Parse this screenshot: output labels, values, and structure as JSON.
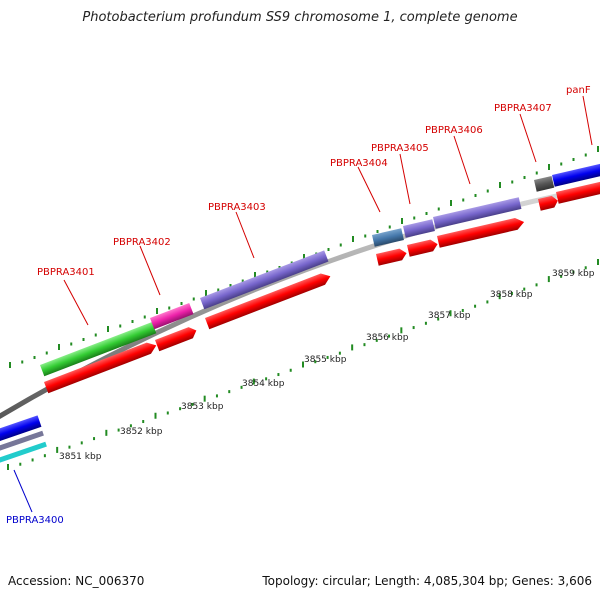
{
  "title": "Photobacterium profundum SS9 chromosome 1, complete genome",
  "footer": {
    "accession": "Accession: NC_006370",
    "summary": "Topology: circular; Length: 4,085,304 bp; Genes: 3,606"
  },
  "gene_labels": {
    "PBPRA3400": "PBPRA3400",
    "PBPRA3401": "PBPRA3401",
    "PBPRA3402": "PBPRA3402",
    "PBPRA3403": "PBPRA3403",
    "PBPRA3404": "PBPRA3404",
    "PBPRA3405": "PBPRA3405",
    "PBPRA3406": "PBPRA3406",
    "PBPRA3407": "PBPRA3407",
    "panF": "panF"
  },
  "kbp_labels": {
    "k3851": "3851 kbp",
    "k3852": "3852 kbp",
    "k3853": "3853 kbp",
    "k3854": "3854 kbp",
    "k3855": "3855 kbp",
    "k3856": "3856 kbp",
    "k3857": "3857 kbp",
    "k3858": "3858 kbp",
    "k3859": "3859 kbp"
  },
  "colors": {
    "cds": "#ff0000",
    "backbone": "#888888",
    "tick": "#228b22",
    "green_gene": "#33cc33",
    "pink_gene": "#ee22aa",
    "purple_gene": "#7766cc",
    "steel_gene": "#4477aa",
    "dark_gene": "#555555",
    "blue_gene": "#0000ee",
    "cyan_gene": "#22cccc"
  }
}
